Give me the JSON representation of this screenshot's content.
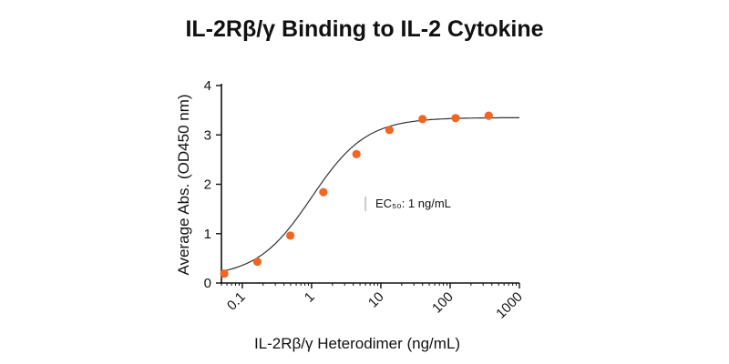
{
  "chart_data": {
    "type": "scatter",
    "title": "IL-2Rβ/γ Binding to IL-2 Cytokine",
    "xlabel": "IL-2Rβ/γ Heterodimer (ng/mL)",
    "ylabel": "Average Abs. (OD450 nm)",
    "x_scale": "log",
    "xlim": [
      0.05,
      1000
    ],
    "ylim": [
      0,
      4
    ],
    "x_ticks": [
      0.1,
      1,
      10,
      100,
      1000
    ],
    "x_tick_labels": [
      "0.1",
      "1",
      "10",
      "100",
      "1000"
    ],
    "y_ticks": [
      0,
      1,
      2,
      3,
      4
    ],
    "y_tick_labels": [
      "0",
      "1",
      "2",
      "3",
      "4"
    ],
    "grid": false,
    "series": [
      {
        "x": [
          0.0549,
          0.165,
          0.494,
          1.48,
          4.44,
          13.3,
          40,
          120,
          360
        ],
        "y": [
          0.19,
          0.43,
          0.96,
          1.84,
          2.61,
          3.1,
          3.32,
          3.34,
          3.39
        ],
        "color": "#f26522"
      }
    ],
    "fit": {
      "bottom": 0.12,
      "top": 3.35,
      "ec50": 1,
      "hill": 1.1,
      "color": "#333333"
    },
    "annotations": [
      {
        "text": "EC₅₀: 1 ng/mL"
      }
    ]
  }
}
